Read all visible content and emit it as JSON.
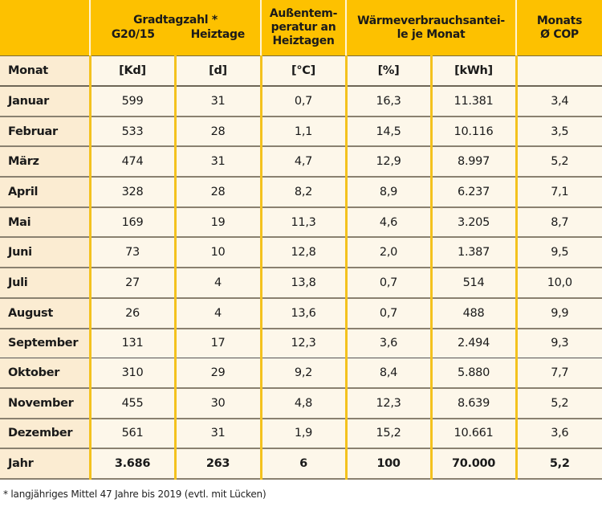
{
  "header": {
    "gradtagzahl_group": "Gradtagzahl *",
    "g2015": "G20/15",
    "heiztage": "Heiztage",
    "aussentemp": "Außentem- peratur an Heiztagen",
    "aussentemp_lines": [
      "Außentem-",
      "peratur an",
      "Heiztagen"
    ],
    "waerme_group_lines": [
      "Wärmeverbrauchsantei-",
      "le je Monat"
    ],
    "cop_lines": [
      "Monats",
      "Ø COP"
    ]
  },
  "units": {
    "label": "Monat",
    "kd": "[Kd]",
    "d": "[d]",
    "c": "[°C]",
    "pct": "[%]",
    "kwh": "[kWh]",
    "cop": ""
  },
  "rows": [
    {
      "monat": "Januar",
      "kd": "599",
      "d": "31",
      "temp": "0,7",
      "pct": "16,3",
      "kwh": "11.381",
      "cop": "3,4"
    },
    {
      "monat": "Februar",
      "kd": "533",
      "d": "28",
      "temp": "1,1",
      "pct": "14,5",
      "kwh": "10.116",
      "cop": "3,5"
    },
    {
      "monat": "März",
      "kd": "474",
      "d": "31",
      "temp": "4,7",
      "pct": "12,9",
      "kwh": "8.997",
      "cop": "5,2"
    },
    {
      "monat": "April",
      "kd": "328",
      "d": "28",
      "temp": "8,2",
      "pct": "8,9",
      "kwh": "6.237",
      "cop": "7,1"
    },
    {
      "monat": "Mai",
      "kd": "169",
      "d": "19",
      "temp": "11,3",
      "pct": "4,6",
      "kwh": "3.205",
      "cop": "8,7"
    },
    {
      "monat": "Juni",
      "kd": "73",
      "d": "10",
      "temp": "12,8",
      "pct": "2,0",
      "kwh": "1.387",
      "cop": "9,5"
    },
    {
      "monat": "Juli",
      "kd": "27",
      "d": "4",
      "temp": "13,8",
      "pct": "0,7",
      "kwh": "514",
      "cop": "10,0"
    },
    {
      "monat": "August",
      "kd": "26",
      "d": "4",
      "temp": "13,6",
      "pct": "0,7",
      "kwh": "488",
      "cop": "9,9"
    },
    {
      "monat": "September",
      "kd": "131",
      "d": "17",
      "temp": "12,3",
      "pct": "3,6",
      "kwh": "2.494",
      "cop": "9,3"
    },
    {
      "monat": "Oktober",
      "kd": "310",
      "d": "29",
      "temp": "9,2",
      "pct": "8,4",
      "kwh": "5.880",
      "cop": "7,7"
    },
    {
      "monat": "November",
      "kd": "455",
      "d": "30",
      "temp": "4,8",
      "pct": "12,3",
      "kwh": "8.639",
      "cop": "5,2"
    },
    {
      "monat": "Dezember",
      "kd": "561",
      "d": "31",
      "temp": "1,9",
      "pct": "15,2",
      "kwh": "10.661",
      "cop": "3,6"
    }
  ],
  "total": {
    "monat": "Jahr",
    "kd": "3.686",
    "d": "263",
    "temp": "6",
    "pct": "100",
    "kwh": "70.000",
    "cop": "5,2"
  },
  "footnote": "* langjähriges Mittel 47 Jahre bis 2019 (evtl. mit Lücken)",
  "colors": {
    "header": "#fdc100",
    "body": "#fdf7ea",
    "first_col": "#fbecd2",
    "grid": "#f4c21e"
  }
}
